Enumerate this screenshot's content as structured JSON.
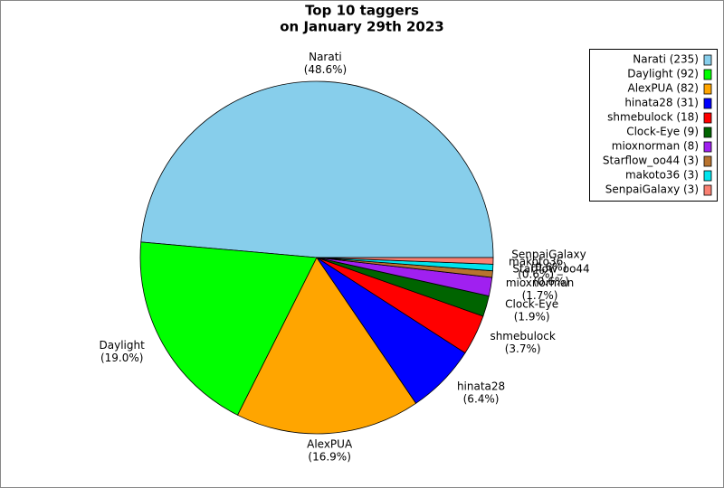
{
  "chart_data": {
    "type": "pie",
    "title": "Top 10 taggers",
    "subtitle": "on January 29th 2023",
    "categories": [
      "Narati",
      "Daylight",
      "AlexPUA",
      "hinata28",
      "shmebulock",
      "Clock-Eye",
      "mioxnorman",
      "Starflow_oo44",
      "makoto36",
      "SenpaiGalaxy"
    ],
    "values": [
      48.6,
      19.0,
      16.9,
      6.4,
      3.7,
      1.9,
      1.7,
      0.6,
      0.6,
      0.6
    ],
    "value_labels": [
      "(48.6%)",
      "(19.0%)",
      "(16.9%)",
      "(6.4%)",
      "(3.7%)",
      "(1.9%)",
      "(1.7%)",
      "(0.6%)",
      "(0.6%)",
      "(0.6%)"
    ],
    "legend_labels": [
      "Narati (235)",
      "Daylight (92)",
      "AlexPUA (82)",
      "hinata28 (31)",
      "shmebulock (18)",
      "Clock-Eye (9)",
      "mioxnorman (8)",
      "Starflow_oo44 (3)",
      "makoto36 (3)",
      "SenpaiGalaxy (3)"
    ],
    "colors": [
      "#87ceeb",
      "#00ff00",
      "#ffa500",
      "#0000ff",
      "#ff0000",
      "#006400",
      "#a020f0",
      "#b8732e",
      "#00e5ee",
      "#fa8072"
    ],
    "legend_position": "upper right"
  }
}
